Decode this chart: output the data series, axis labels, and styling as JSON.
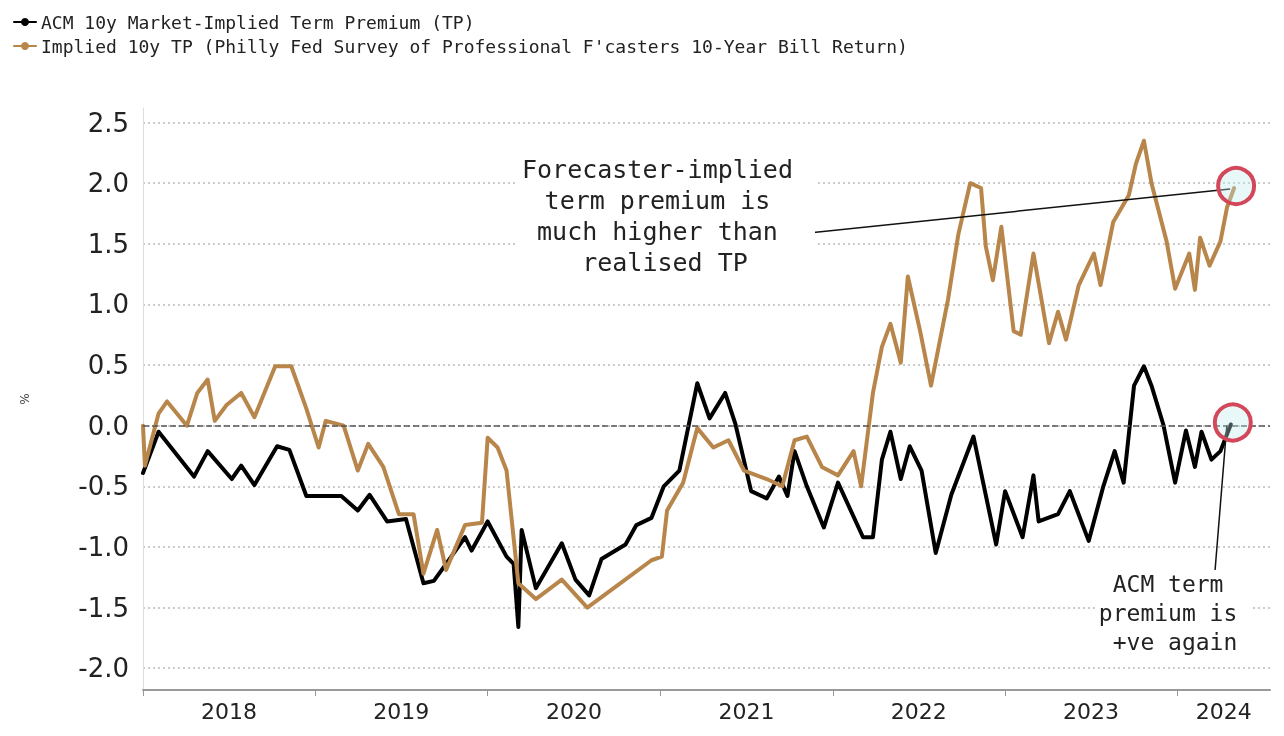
{
  "chart_data": {
    "type": "line",
    "ylabel": "%",
    "legend": "top left",
    "grid": "y",
    "marker": "none",
    "line_style": "solid",
    "xlim": [
      "2018-01-01",
      "2024-07-15"
    ],
    "xticks": [
      {
        "value": "2018-01-01",
        "label": null
      },
      {
        "value": "2018-07-02",
        "label": "2018"
      },
      {
        "value": "2019-01-01",
        "label": null
      },
      {
        "value": "2019-07-02",
        "label": "2019"
      },
      {
        "value": "2020-01-01",
        "label": null
      },
      {
        "value": "2020-07-02",
        "label": "2020"
      },
      {
        "value": "2021-01-01",
        "label": null
      },
      {
        "value": "2021-07-02",
        "label": "2021"
      },
      {
        "value": "2022-01-01",
        "label": null
      },
      {
        "value": "2022-07-02",
        "label": "2022"
      },
      {
        "value": "2023-01-01",
        "label": null
      },
      {
        "value": "2023-07-02",
        "label": "2023"
      },
      {
        "value": "2024-01-01",
        "label": null
      },
      {
        "value": "2024-04-08",
        "label": "2024"
      }
    ],
    "ylim": [
      -2.18,
      2.62
    ],
    "yticks": [
      {
        "value": -2,
        "label": "-2.0"
      },
      {
        "value": -1.5,
        "label": "-1.5"
      },
      {
        "value": -1,
        "label": "-1.0"
      },
      {
        "value": -0.5,
        "label": "-0.5"
      },
      {
        "value": 0,
        "label": "0.0"
      },
      {
        "value": 0.5,
        "label": "0.5"
      },
      {
        "value": 1,
        "label": "1.0"
      },
      {
        "value": 1.5,
        "label": "1.5"
      },
      {
        "value": 2,
        "label": "2.0"
      },
      {
        "value": 2.5,
        "label": "2.5"
      }
    ],
    "ref_lines": [
      {
        "axis": "y",
        "value": 0,
        "color": "#555555",
        "line_style": "dashed"
      }
    ],
    "series": [
      {
        "name": "ACM 10y Market-Implied Term Premium (TP)",
        "color": "#000000",
        "x": [
          "2018-01-01",
          "2018-02-03",
          "2018-04-19",
          "2018-05-18",
          "2018-07-08",
          "2018-07-28",
          "2018-08-25",
          "2018-10-12",
          "2018-11-07",
          "2018-12-13",
          "2019-02-25",
          "2019-04-01",
          "2019-04-26",
          "2019-06-02",
          "2019-07-12",
          "2019-08-18",
          "2019-09-09",
          "2019-10-05",
          "2019-11-14",
          "2019-11-28",
          "2020-01-01",
          "2020-02-10",
          "2020-02-25",
          "2020-03-06",
          "2020-03-13",
          "2020-04-12",
          "2020-06-06",
          "2020-07-05",
          "2020-08-03",
          "2020-08-29",
          "2020-10-19",
          "2020-11-11",
          "2020-12-13",
          "2021-01-08",
          "2021-02-10",
          "2021-03-20",
          "2021-04-15",
          "2021-05-18",
          "2021-06-09",
          "2021-07-12",
          "2021-08-14",
          "2021-09-09",
          "2021-09-27",
          "2021-10-12",
          "2021-11-07",
          "2021-12-13",
          "2022-01-12",
          "2022-03-06",
          "2022-03-27",
          "2022-04-15",
          "2022-05-03",
          "2022-05-25",
          "2022-06-13",
          "2022-07-08",
          "2022-08-07",
          "2022-09-09",
          "2022-10-26",
          "2022-12-13",
          "2023-01-01",
          "2023-02-07",
          "2023-03-02",
          "2023-03-13",
          "2023-04-23",
          "2023-05-18",
          "2023-06-27",
          "2023-07-28",
          "2023-08-21",
          "2023-09-09",
          "2023-10-01",
          "2023-10-22",
          "2023-11-07",
          "2023-12-02",
          "2023-12-27",
          "2024-01-19",
          "2024-02-07",
          "2024-02-21",
          "2024-03-13",
          "2024-04-01",
          "2024-04-23"
        ],
        "values": [
          -0.39,
          -0.05,
          -0.42,
          -0.21,
          -0.44,
          -0.33,
          -0.49,
          -0.17,
          -0.2,
          -0.58,
          -0.58,
          -0.7,
          -0.57,
          -0.79,
          -0.77,
          -1.3,
          -1.28,
          -1.14,
          -0.92,
          -1.03,
          -0.79,
          -1.08,
          -1.14,
          -1.66,
          -0.86,
          -1.34,
          -0.97,
          -1.27,
          -1.4,
          -1.1,
          -0.98,
          -0.82,
          -0.76,
          -0.5,
          -0.37,
          0.35,
          0.06,
          0.27,
          0.01,
          -0.54,
          -0.6,
          -0.42,
          -0.58,
          -0.21,
          -0.5,
          -0.84,
          -0.47,
          -0.92,
          -0.92,
          -0.28,
          -0.05,
          -0.44,
          -0.17,
          -0.37,
          -1.05,
          -0.57,
          -0.09,
          -0.98,
          -0.54,
          -0.92,
          -0.41,
          -0.79,
          -0.73,
          -0.54,
          -0.95,
          -0.5,
          -0.21,
          -0.47,
          0.33,
          0.49,
          0.33,
          0.01,
          -0.47,
          -0.04,
          -0.34,
          -0.05,
          -0.28,
          -0.21,
          0.01
        ]
      },
      {
        "name": "Implied 10y TP (Philly Fed Survey of Professional F'casters 10-Year Bill Return)",
        "color": "#b8864a",
        "x": [
          "2018-01-01",
          "2018-01-05",
          "2018-02-03",
          "2018-02-21",
          "2018-04-04",
          "2018-04-26",
          "2018-05-18",
          "2018-06-02",
          "2018-06-27",
          "2018-07-28",
          "2018-08-25",
          "2018-10-08",
          "2018-11-11",
          "2018-12-13",
          "2019-01-08",
          "2019-01-23",
          "2019-03-02",
          "2019-04-01",
          "2019-04-23",
          "2019-05-25",
          "2019-06-27",
          "2019-07-28",
          "2019-08-18",
          "2019-09-16",
          "2019-10-05",
          "2019-11-14",
          "2019-12-20",
          "2020-01-01",
          "2020-01-22",
          "2020-02-10",
          "2020-03-06",
          "2020-04-12",
          "2020-06-06",
          "2020-07-30",
          "2020-09-24",
          "2020-12-13",
          "2021-01-04",
          "2021-01-15",
          "2021-02-18",
          "2021-03-20",
          "2021-04-23",
          "2021-05-25",
          "2021-06-27",
          "2021-08-14",
          "2021-09-16",
          "2021-10-12",
          "2021-11-07",
          "2021-12-09",
          "2022-01-12",
          "2022-02-14",
          "2022-03-02",
          "2022-03-27",
          "2022-04-15",
          "2022-05-03",
          "2022-05-25",
          "2022-06-09",
          "2022-07-05",
          "2022-07-28",
          "2022-09-02",
          "2022-09-24",
          "2022-10-19",
          "2022-11-11",
          "2022-11-21",
          "2022-12-06",
          "2022-12-24",
          "2023-01-19",
          "2023-02-03",
          "2023-03-02",
          "2023-04-04",
          "2023-04-23",
          "2023-05-10",
          "2023-06-06",
          "2023-07-08",
          "2023-07-22",
          "2023-08-18",
          "2023-09-20",
          "2023-10-05",
          "2023-10-22",
          "2023-11-07",
          "2023-12-09",
          "2023-12-27",
          "2024-01-26",
          "2024-02-07",
          "2024-02-18",
          "2024-03-09",
          "2024-04-01",
          "2024-04-15",
          "2024-04-30"
        ],
        "values": [
          0,
          -0.33,
          0.1,
          0.2,
          0,
          0.27,
          0.38,
          0.04,
          0.17,
          0.27,
          0.07,
          0.49,
          0.49,
          0.14,
          -0.18,
          0.04,
          0,
          -0.37,
          -0.15,
          -0.34,
          -0.73,
          -0.73,
          -1.22,
          -0.86,
          -1.19,
          -0.82,
          -0.8,
          -0.1,
          -0.18,
          -0.37,
          -1.3,
          -1.43,
          -1.27,
          -1.5,
          -1.34,
          -1.11,
          -1.08,
          -0.7,
          -0.47,
          -0.02,
          -0.18,
          -0.12,
          -0.37,
          -0.44,
          -0.5,
          -0.12,
          -0.09,
          -0.34,
          -0.41,
          -0.21,
          -0.5,
          0.27,
          0.65,
          0.84,
          0.52,
          1.23,
          0.78,
          0.33,
          1.04,
          1.58,
          2,
          1.96,
          1.48,
          1.2,
          1.64,
          0.78,
          0.75,
          1.42,
          0.68,
          0.94,
          0.71,
          1.16,
          1.42,
          1.16,
          1.68,
          1.9,
          2.16,
          2.35,
          2,
          1.52,
          1.13,
          1.42,
          1.12,
          1.55,
          1.32,
          1.52,
          1.8,
          1.96
        ]
      }
    ],
    "annotations": [
      {
        "text": "Forecaster-implied term premium is much higher than realised TP",
        "x": "2024-04-30",
        "y": 1.96
      },
      {
        "text": "ACM term premium is +ve again",
        "x": "2024-04-23",
        "y": 0.01
      }
    ]
  }
}
